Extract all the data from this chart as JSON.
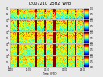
{
  "title": "T2007210_25HZ_WFB",
  "title_fontsize": 3.5,
  "n_panels": 5,
  "n_time": 200,
  "n_freq": 30,
  "figsize": [
    1.28,
    0.96
  ],
  "dpi": 100,
  "colormap": "jet",
  "fig_facecolor": "#e8e8e8",
  "tick_fontsize": 1.8,
  "noise_seed": 42,
  "panel_base_levels": [
    0.25,
    0.3,
    0.35,
    0.35,
    0.35
  ],
  "bright_col_positions": [
    20,
    45,
    70,
    95,
    120,
    155,
    178
  ],
  "bright_col_widths": [
    2,
    2,
    3,
    2,
    3,
    2,
    2
  ],
  "bright_col_intensities": [
    0.7,
    0.6,
    0.9,
    0.7,
    0.8,
    0.9,
    0.8
  ],
  "panel_bright_scale": [
    0.3,
    0.6,
    1.0,
    1.0,
    1.0
  ],
  "freq_gradient": [
    0.3,
    0.25,
    0.2,
    0.15,
    0.12
  ]
}
